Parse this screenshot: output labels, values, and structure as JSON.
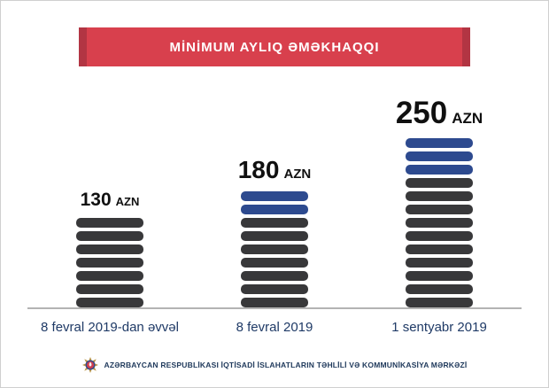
{
  "banner": {
    "title": "MİNİMUM AYLIQ ƏMƏKHAQQI",
    "color": "#d8404d"
  },
  "chart_data": {
    "type": "bar",
    "title": "MİNİMUM AYLIQ ƏMƏKHAQQI",
    "unit": "AZN",
    "categories": [
      "8 fevral 2019-dan əvvəl",
      "8 fevral 2019",
      "1 sentyabr 2019"
    ],
    "values": [
      130,
      180,
      250
    ],
    "series": [
      {
        "name": "base (dark segments)",
        "values": [
          7,
          7,
          10
        ]
      },
      {
        "name": "increase (blue segments)",
        "values": [
          0,
          2,
          3
        ]
      }
    ],
    "bars": [
      {
        "value": "130",
        "unit": "AZN",
        "category": "8 fevral 2019-dan əvvəl",
        "segments_blue": 0,
        "segments_dark": 7
      },
      {
        "value": "180",
        "unit": "AZN",
        "category": "8 fevral 2019",
        "segments_blue": 2,
        "segments_dark": 7
      },
      {
        "value": "250",
        "unit": "AZN",
        "category": "1 sentyabr 2019",
        "segments_blue": 3,
        "segments_dark": 10
      }
    ],
    "colors": {
      "segment_dark": "#38383a",
      "segment_blue": "#2d4a8f",
      "banner_red": "#d8404d",
      "category_label": "#1f3a66"
    },
    "xlabel": "",
    "ylabel": "",
    "legend_position": "none",
    "grid": false
  },
  "footer": {
    "text": "AZƏRBAYCAN RESPUBLİKASI İQTİSADİ İSLAHATLARIN TƏHLİLİ VƏ KOMMUNİKASİYA MƏRKƏZİ"
  }
}
